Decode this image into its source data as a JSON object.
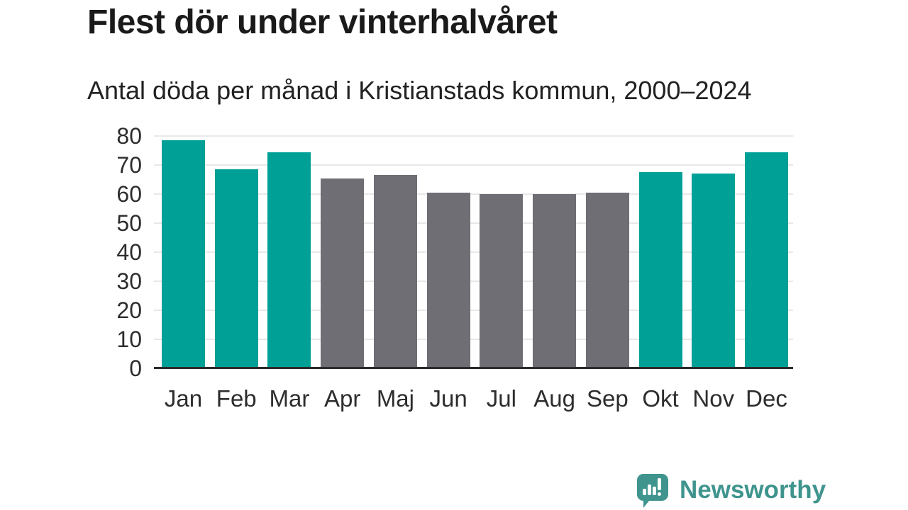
{
  "title": "Flest dör under vinterhalvåret",
  "subtitle": "Antal döda per månad i Kristianstads kommun, 2000–2024",
  "footer": {
    "brand": "Newsworthy",
    "logo_icon": "newsworthy-speech-bubble-chart-icon"
  },
  "colors": {
    "winter": "#00A096",
    "summer": "#6E6E74",
    "grid": "#e8e8e8",
    "axis": "#2b2b2b",
    "brand": "#3F948E",
    "text": "#1a1a1a"
  },
  "chart_data": {
    "type": "bar",
    "title": "Flest dör under vinterhalvåret",
    "subtitle": "Antal döda per månad i Kristianstads kommun, 2000–2024",
    "categories": [
      "Jan",
      "Feb",
      "Mar",
      "Apr",
      "Maj",
      "Jun",
      "Jul",
      "Aug",
      "Sep",
      "Okt",
      "Nov",
      "Dec"
    ],
    "values": [
      78,
      68,
      74,
      65,
      66,
      60,
      59.5,
      59.5,
      60,
      67,
      66.5,
      74
    ],
    "bar_seasons": [
      "winter",
      "winter",
      "winter",
      "summer",
      "summer",
      "summer",
      "summer",
      "summer",
      "summer",
      "winter",
      "winter",
      "winter"
    ],
    "xlabel": "",
    "ylabel": "",
    "ylim": [
      0,
      80
    ],
    "yticks": [
      0,
      10,
      20,
      30,
      40,
      50,
      60,
      70,
      80
    ],
    "grid": true,
    "legend": false
  }
}
